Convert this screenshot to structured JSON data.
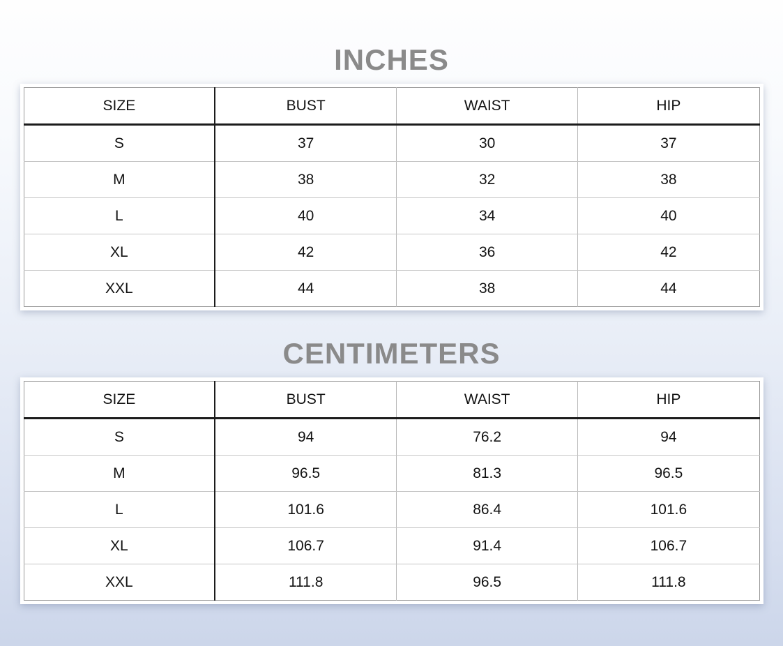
{
  "page": {
    "background_top_color": "#fefefe",
    "background_bottom_color": "#ccd6ea",
    "title_color": "#8a8a8a",
    "grid_light_color": "#c6c6c6",
    "grid_dark_color": "#1c1c1c"
  },
  "tables": [
    {
      "title": "INCHES",
      "columns": [
        "SIZE",
        "BUST",
        "WAIST",
        "HIP"
      ],
      "rows": [
        {
          "size": "S",
          "bust": "37",
          "waist": "30",
          "hip": "37"
        },
        {
          "size": "M",
          "bust": "38",
          "waist": "32",
          "hip": "38"
        },
        {
          "size": "L",
          "bust": "40",
          "waist": "34",
          "hip": "40"
        },
        {
          "size": "XL",
          "bust": "42",
          "waist": "36",
          "hip": "42"
        },
        {
          "size": "XXL",
          "bust": "44",
          "waist": "38",
          "hip": "44"
        }
      ]
    },
    {
      "title": "CENTIMETERS",
      "columns": [
        "SIZE",
        "BUST",
        "WAIST",
        "HIP"
      ],
      "rows": [
        {
          "size": "S",
          "bust": "94",
          "waist": "76.2",
          "hip": "94"
        },
        {
          "size": "M",
          "bust": "96.5",
          "waist": "81.3",
          "hip": "96.5"
        },
        {
          "size": "L",
          "bust": "101.6",
          "waist": "86.4",
          "hip": "101.6"
        },
        {
          "size": "XL",
          "bust": "106.7",
          "waist": "91.4",
          "hip": "106.7"
        },
        {
          "size": "XXL",
          "bust": "111.8",
          "waist": "96.5",
          "hip": "111.8"
        }
      ]
    }
  ]
}
